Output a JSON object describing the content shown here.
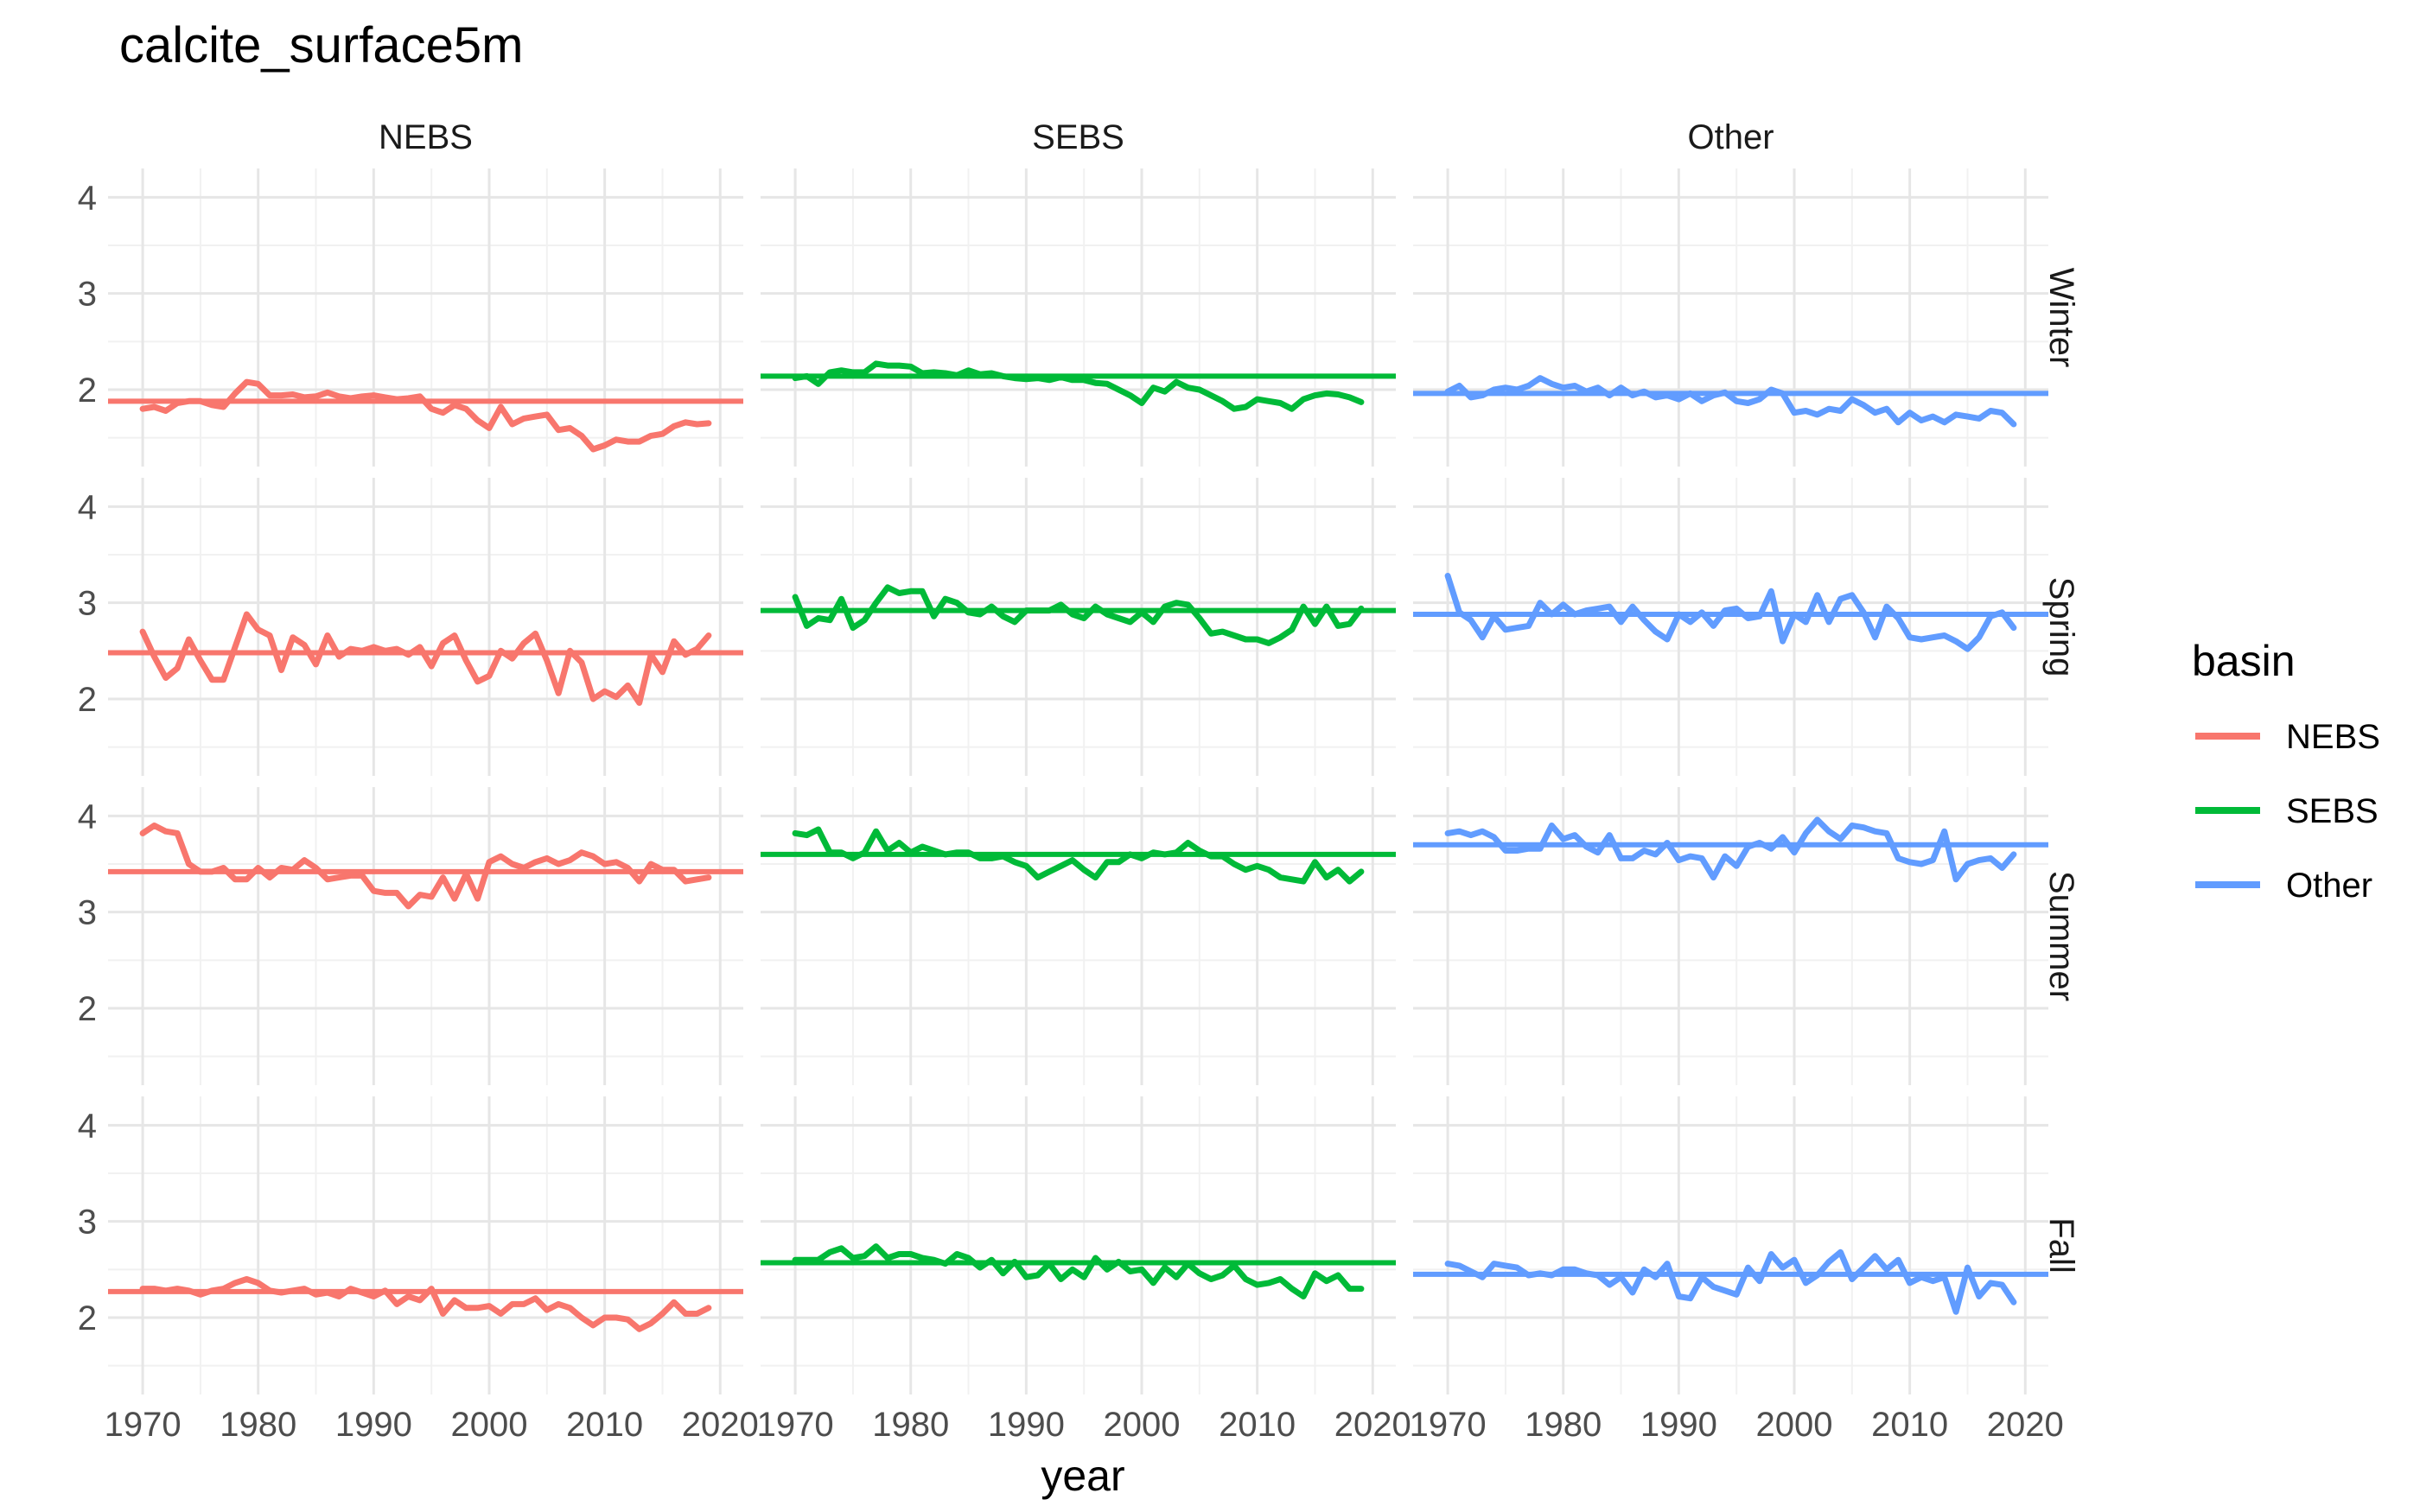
{
  "chart_data": {
    "type": "line",
    "title": "calcite_surface5m",
    "xlabel": "year",
    "ylabel": "",
    "xlim": [
      1967,
      2022
    ],
    "ylim": [
      1.2,
      4.3
    ],
    "x_ticks": [
      1970,
      1980,
      1990,
      2000,
      2010,
      2020
    ],
    "x_tick_labels": [
      "1970",
      "1980",
      "1990",
      "2000",
      "2010",
      "2020"
    ],
    "y_ticks": [
      2,
      3,
      4
    ],
    "y_tick_labels": [
      "2",
      "3",
      "4"
    ],
    "grid": true,
    "facets": {
      "columns": [
        "NEBS",
        "SEBS",
        "Other"
      ],
      "rows": [
        "Winter",
        "Spring",
        "Summer",
        "Fall"
      ]
    },
    "legend": {
      "title": "basin",
      "position": "right",
      "items": [
        {
          "name": "NEBS",
          "color": "#F8766D"
        },
        {
          "name": "SEBS",
          "color": "#00BA38"
        },
        {
          "name": "Other",
          "color": "#619CFF"
        }
      ]
    },
    "x": [
      1970,
      1971,
      1972,
      1973,
      1974,
      1975,
      1976,
      1977,
      1978,
      1979,
      1980,
      1981,
      1982,
      1983,
      1984,
      1985,
      1986,
      1987,
      1988,
      1989,
      1990,
      1991,
      1992,
      1993,
      1994,
      1995,
      1996,
      1997,
      1998,
      1999,
      2000,
      2001,
      2002,
      2003,
      2004,
      2005,
      2006,
      2007,
      2008,
      2009,
      2010,
      2011,
      2012,
      2013,
      2014,
      2015,
      2016,
      2017,
      2018,
      2019
    ],
    "panels": [
      {
        "row": "Winter",
        "column": "NEBS",
        "mean": 1.88,
        "values": [
          1.8,
          1.82,
          1.78,
          1.86,
          1.88,
          1.88,
          1.84,
          1.82,
          1.96,
          2.08,
          2.06,
          1.94,
          1.94,
          1.95,
          1.92,
          1.93,
          1.97,
          1.93,
          1.91,
          1.93,
          1.94,
          1.92,
          1.9,
          1.91,
          1.93,
          1.8,
          1.76,
          1.84,
          1.8,
          1.68,
          1.6,
          1.82,
          1.64,
          1.7,
          1.72,
          1.74,
          1.58,
          1.6,
          1.52,
          1.38,
          1.42,
          1.48,
          1.46,
          1.46,
          1.52,
          1.54,
          1.62,
          1.66,
          1.64,
          1.65
        ]
      },
      {
        "row": "Winter",
        "column": "SEBS",
        "mean": 2.14,
        "values": [
          2.12,
          2.14,
          2.06,
          2.18,
          2.2,
          2.18,
          2.18,
          2.27,
          2.25,
          2.25,
          2.24,
          2.17,
          2.18,
          2.17,
          2.15,
          2.2,
          2.16,
          2.17,
          2.14,
          2.12,
          2.11,
          2.12,
          2.1,
          2.13,
          2.1,
          2.1,
          2.07,
          2.06,
          2.0,
          1.94,
          1.86,
          2.02,
          1.98,
          2.08,
          2.02,
          2.0,
          1.94,
          1.88,
          1.8,
          1.82,
          1.9,
          1.88,
          1.86,
          1.8,
          1.9,
          1.94,
          1.96,
          1.95,
          1.92,
          1.87
        ]
      },
      {
        "row": "Winter",
        "column": "Other",
        "mean": 1.96,
        "values": [
          1.98,
          2.04,
          1.92,
          1.94,
          2.0,
          2.02,
          2.0,
          2.04,
          2.12,
          2.06,
          2.02,
          2.04,
          1.98,
          2.02,
          1.94,
          2.02,
          1.94,
          1.98,
          1.92,
          1.94,
          1.9,
          1.96,
          1.88,
          1.94,
          1.97,
          1.88,
          1.86,
          1.9,
          2.0,
          1.96,
          1.76,
          1.78,
          1.74,
          1.8,
          1.78,
          1.9,
          1.84,
          1.76,
          1.8,
          1.66,
          1.76,
          1.68,
          1.72,
          1.66,
          1.74,
          1.72,
          1.7,
          1.78,
          1.76,
          1.64
        ]
      },
      {
        "row": "Spring",
        "column": "NEBS",
        "mean": 2.48,
        "values": [
          2.7,
          2.44,
          2.22,
          2.32,
          2.62,
          2.4,
          2.2,
          2.2,
          2.54,
          2.88,
          2.72,
          2.66,
          2.3,
          2.64,
          2.56,
          2.36,
          2.66,
          2.44,
          2.52,
          2.5,
          2.54,
          2.5,
          2.52,
          2.46,
          2.54,
          2.34,
          2.58,
          2.66,
          2.4,
          2.18,
          2.24,
          2.5,
          2.42,
          2.58,
          2.68,
          2.4,
          2.06,
          2.5,
          2.38,
          2.0,
          2.08,
          2.02,
          2.14,
          1.96,
          2.46,
          2.28,
          2.6,
          2.46,
          2.52,
          2.66
        ]
      },
      {
        "row": "Spring",
        "column": "SEBS",
        "mean": 2.92,
        "values": [
          3.06,
          2.76,
          2.84,
          2.82,
          3.04,
          2.74,
          2.82,
          3.0,
          3.16,
          3.1,
          3.12,
          3.12,
          2.86,
          3.04,
          3.0,
          2.9,
          2.88,
          2.96,
          2.86,
          2.8,
          2.92,
          2.92,
          2.92,
          2.98,
          2.88,
          2.84,
          2.96,
          2.88,
          2.84,
          2.8,
          2.9,
          2.8,
          2.96,
          3.0,
          2.98,
          2.84,
          2.68,
          2.7,
          2.66,
          2.62,
          2.62,
          2.58,
          2.64,
          2.72,
          2.96,
          2.78,
          2.96,
          2.76,
          2.78,
          2.94
        ]
      },
      {
        "row": "Spring",
        "column": "Other",
        "mean": 2.88,
        "values": [
          3.28,
          2.9,
          2.82,
          2.64,
          2.86,
          2.72,
          2.74,
          2.76,
          3.0,
          2.88,
          2.98,
          2.88,
          2.92,
          2.94,
          2.96,
          2.8,
          2.96,
          2.82,
          2.7,
          2.62,
          2.88,
          2.8,
          2.9,
          2.76,
          2.92,
          2.94,
          2.84,
          2.86,
          3.12,
          2.6,
          2.88,
          2.8,
          3.08,
          2.8,
          3.04,
          3.08,
          2.9,
          2.64,
          2.96,
          2.84,
          2.64,
          2.62,
          2.64,
          2.66,
          2.6,
          2.52,
          2.64,
          2.86,
          2.9,
          2.74
        ]
      },
      {
        "row": "Summer",
        "column": "NEBS",
        "mean": 3.42,
        "values": [
          3.82,
          3.9,
          3.84,
          3.82,
          3.5,
          3.42,
          3.42,
          3.46,
          3.34,
          3.34,
          3.46,
          3.36,
          3.46,
          3.44,
          3.54,
          3.46,
          3.34,
          3.36,
          3.38,
          3.38,
          3.22,
          3.2,
          3.2,
          3.06,
          3.18,
          3.16,
          3.36,
          3.14,
          3.4,
          3.14,
          3.52,
          3.58,
          3.5,
          3.46,
          3.52,
          3.56,
          3.5,
          3.54,
          3.62,
          3.58,
          3.5,
          3.52,
          3.46,
          3.32,
          3.5,
          3.44,
          3.44,
          3.32,
          3.34,
          3.36
        ]
      },
      {
        "row": "Summer",
        "column": "SEBS",
        "mean": 3.6,
        "values": [
          3.82,
          3.8,
          3.86,
          3.62,
          3.62,
          3.56,
          3.62,
          3.84,
          3.64,
          3.72,
          3.62,
          3.68,
          3.64,
          3.6,
          3.62,
          3.62,
          3.56,
          3.56,
          3.58,
          3.52,
          3.48,
          3.36,
          3.42,
          3.48,
          3.54,
          3.44,
          3.36,
          3.52,
          3.52,
          3.6,
          3.56,
          3.62,
          3.6,
          3.62,
          3.72,
          3.64,
          3.58,
          3.58,
          3.5,
          3.44,
          3.48,
          3.44,
          3.36,
          3.34,
          3.32,
          3.52,
          3.36,
          3.44,
          3.32,
          3.42
        ]
      },
      {
        "row": "Summer",
        "column": "Other",
        "mean": 3.7,
        "values": [
          3.82,
          3.84,
          3.8,
          3.84,
          3.78,
          3.64,
          3.64,
          3.66,
          3.66,
          3.9,
          3.76,
          3.8,
          3.68,
          3.62,
          3.8,
          3.56,
          3.56,
          3.64,
          3.6,
          3.72,
          3.54,
          3.58,
          3.56,
          3.36,
          3.58,
          3.48,
          3.68,
          3.72,
          3.66,
          3.78,
          3.62,
          3.82,
          3.96,
          3.84,
          3.76,
          3.9,
          3.88,
          3.84,
          3.82,
          3.56,
          3.52,
          3.5,
          3.54,
          3.84,
          3.34,
          3.5,
          3.54,
          3.56,
          3.46,
          3.6
        ]
      },
      {
        "row": "Fall",
        "column": "NEBS",
        "mean": 2.27,
        "values": [
          2.3,
          2.3,
          2.28,
          2.3,
          2.28,
          2.24,
          2.28,
          2.3,
          2.36,
          2.4,
          2.36,
          2.28,
          2.26,
          2.28,
          2.3,
          2.24,
          2.26,
          2.22,
          2.3,
          2.26,
          2.22,
          2.28,
          2.14,
          2.22,
          2.18,
          2.3,
          2.04,
          2.18,
          2.1,
          2.1,
          2.12,
          2.04,
          2.14,
          2.14,
          2.2,
          2.08,
          2.14,
          2.1,
          2.0,
          1.92,
          2.0,
          2.0,
          1.98,
          1.88,
          1.94,
          2.04,
          2.16,
          2.04,
          2.04,
          2.1
        ]
      },
      {
        "row": "Fall",
        "column": "SEBS",
        "mean": 2.57,
        "values": [
          2.6,
          2.6,
          2.6,
          2.68,
          2.72,
          2.62,
          2.64,
          2.74,
          2.62,
          2.66,
          2.66,
          2.62,
          2.6,
          2.56,
          2.66,
          2.62,
          2.52,
          2.6,
          2.46,
          2.58,
          2.42,
          2.44,
          2.56,
          2.4,
          2.5,
          2.42,
          2.62,
          2.5,
          2.58,
          2.48,
          2.5,
          2.36,
          2.52,
          2.42,
          2.56,
          2.46,
          2.4,
          2.44,
          2.54,
          2.4,
          2.34,
          2.36,
          2.4,
          2.3,
          2.22,
          2.46,
          2.38,
          2.44,
          2.3,
          2.3
        ]
      },
      {
        "row": "Fall",
        "column": "Other",
        "mean": 2.45,
        "values": [
          2.56,
          2.54,
          2.48,
          2.42,
          2.56,
          2.54,
          2.52,
          2.44,
          2.46,
          2.44,
          2.5,
          2.5,
          2.46,
          2.44,
          2.34,
          2.42,
          2.26,
          2.5,
          2.42,
          2.56,
          2.22,
          2.2,
          2.42,
          2.32,
          2.28,
          2.24,
          2.52,
          2.38,
          2.66,
          2.52,
          2.6,
          2.36,
          2.44,
          2.58,
          2.68,
          2.4,
          2.52,
          2.64,
          2.5,
          2.6,
          2.36,
          2.42,
          2.38,
          2.42,
          2.06,
          2.52,
          2.22,
          2.36,
          2.34,
          2.16
        ]
      }
    ]
  }
}
